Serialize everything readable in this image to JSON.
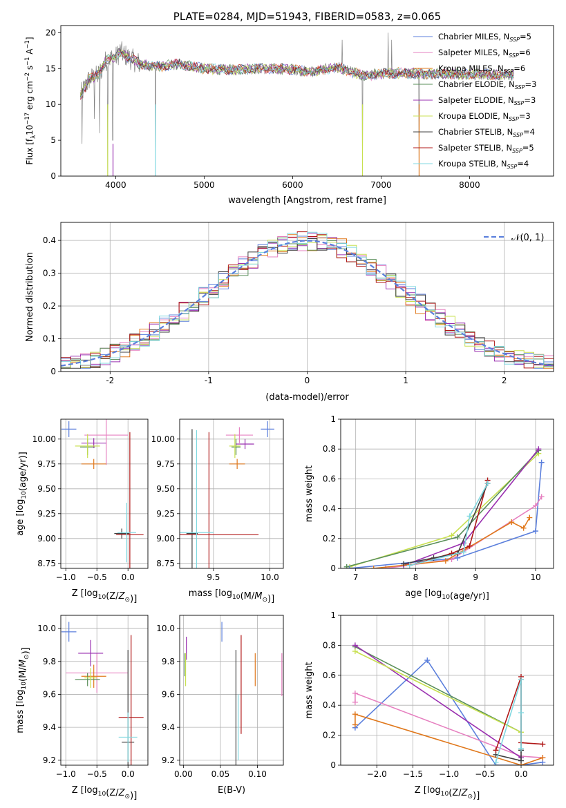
{
  "colors": {
    "data": "#808080",
    "ChabMIL": "#5b7fdc",
    "SalpMIL": "#e680c0",
    "KrouMIL": "#e0781c",
    "ChabELO": "#5a8f5a",
    "SalpELO": "#9a30b0",
    "KrouELO": "#c8e050",
    "ChabSTE": "#404040",
    "SalpSTE": "#b01818",
    "KrouSTE": "#80d8e0",
    "gauss": "#5b7fdc"
  },
  "chart_data": [
    {
      "id": "spectrum",
      "type": "line",
      "title": "PLATE=0284, MJD=51943, FIBERID=0583, z=0.065",
      "xlabel": "wavelength [Angstrom, rest frame]",
      "ylabel": "Flux [f_λ 10^-17 erg cm^-2 s^-1 A^-1]",
      "xlim": [
        3380,
        8950
      ],
      "ylim": [
        0,
        21
      ],
      "xticks": [
        4000,
        5000,
        6000,
        7000,
        8000
      ],
      "yticks": [
        0,
        5,
        10,
        15,
        20
      ],
      "grid": false,
      "legend_position": "top-right",
      "anchors": [
        [
          3600,
          11.2
        ],
        [
          3700,
          13.5
        ],
        [
          3800,
          14.0
        ],
        [
          3900,
          16.3
        ],
        [
          4000,
          16.5
        ],
        [
          4050,
          17.4
        ],
        [
          4150,
          16.5
        ],
        [
          4300,
          15.5
        ],
        [
          4500,
          15.3
        ],
        [
          4700,
          15.6
        ],
        [
          5000,
          15.0
        ],
        [
          5300,
          14.8
        ],
        [
          5600,
          15.0
        ],
        [
          6000,
          14.9
        ],
        [
          6200,
          14.5
        ],
        [
          6500,
          15.2
        ],
        [
          6800,
          14.0
        ],
        [
          7100,
          14.4
        ],
        [
          7500,
          14.3
        ],
        [
          8000,
          14.2
        ],
        [
          8500,
          14.1
        ]
      ],
      "spikes": [
        [
          3620,
          4.5
        ],
        [
          3760,
          8.0
        ],
        [
          3820,
          6.0
        ],
        [
          3910,
          0
        ],
        [
          3968,
          5.0
        ],
        [
          4450,
          0
        ],
        [
          6560,
          19.0
        ],
        [
          6790,
          0
        ],
        [
          7430,
          0
        ],
        [
          7080,
          20.0
        ],
        [
          7120,
          19.0
        ]
      ],
      "series": [
        {
          "key": "ChabMIL",
          "label": "Chabrier MILES, N",
          "sub": "SSP",
          "val": "=5"
        },
        {
          "key": "SalpMIL",
          "label": "Salpeter MILES, N",
          "sub": "SSP",
          "val": "=6"
        },
        {
          "key": "KrouMIL",
          "label": "Kroupa MILES, N",
          "sub": "SSP",
          "val": "=6"
        },
        {
          "key": "ChabELO",
          "label": "Chabrier ELODIE, N",
          "sub": "SSP",
          "val": "=3"
        },
        {
          "key": "SalpELO",
          "label": "Salpeter ELODIE, N",
          "sub": "SSP",
          "val": "=3"
        },
        {
          "key": "KrouELO",
          "label": "Kroupa ELODIE, N",
          "sub": "SSP",
          "val": "=3"
        },
        {
          "key": "ChabSTE",
          "label": "Chabrier STELIB, N",
          "sub": "SSP",
          "val": "=4"
        },
        {
          "key": "SalpSTE",
          "label": "Salpeter STELIB, N",
          "sub": "SSP",
          "val": "=5"
        },
        {
          "key": "KrouSTE",
          "label": "Kroupa STELIB, N",
          "sub": "SSP",
          "val": "=4"
        }
      ]
    },
    {
      "id": "residuals",
      "type": "line",
      "xlabel": "(data-model)/error",
      "ylabel": "Normed distribution",
      "xlim": [
        -2.5,
        2.5
      ],
      "ylim": [
        0,
        0.455
      ],
      "xticks": [
        -2,
        -1,
        0,
        1,
        2
      ],
      "yticks": [
        0.0,
        0.1,
        0.2,
        0.3,
        0.4
      ],
      "grid": true,
      "legend_position": "top-right",
      "legend_label": "𝒩(0, 1)",
      "bin_width": 0.1,
      "n_bins": 50
    },
    {
      "id": "age_vs_Z",
      "type": "scatter",
      "xlabel": "Z [log10(Z/Z⊙)]",
      "ylabel": "age  [log10(age/yr)]",
      "xlim": [
        -1.08,
        0.32
      ],
      "ylim": [
        8.7,
        10.2
      ],
      "xticks": [
        -1.0,
        -0.5,
        0.0
      ],
      "xticklabels": [
        "−1.0",
        "−0.5",
        "0.0"
      ],
      "yticks": [
        8.75,
        9.0,
        9.25,
        9.5,
        9.75,
        10.0
      ],
      "yticklabels": [
        "8.75",
        "9.00",
        "9.25",
        "9.50",
        "9.75",
        "10.00"
      ],
      "grid": true,
      "points": [
        {
          "key": "ChabMIL",
          "x": -0.95,
          "y": 10.1,
          "xerr": 0.12,
          "yerr": 0.08
        },
        {
          "key": "SalpMIL",
          "x": -0.35,
          "y": 10.04,
          "xerr": 0.35,
          "yerr": 0.3
        },
        {
          "key": "KrouMIL",
          "x": -0.55,
          "y": 9.75,
          "xerr": 0.2,
          "yerr": 0.05
        },
        {
          "key": "ChabELO",
          "x": -0.65,
          "y": 9.92,
          "xerr": 0.12,
          "yerr": 0.08
        },
        {
          "key": "SalpELO",
          "x": -0.55,
          "y": 9.96,
          "xerr": 0.2,
          "yerr": 0.05
        },
        {
          "key": "KrouELO",
          "x": -0.65,
          "y": 9.93,
          "xerr": 0.2,
          "yerr": 0.12
        },
        {
          "key": "ChabSTE",
          "x": -0.1,
          "y": 9.05,
          "xerr": 0.12,
          "yerr": 0.05
        },
        {
          "key": "SalpSTE",
          "x": 0.03,
          "y": 9.04,
          "xerr": 0.22,
          "yerr": 1.03
        },
        {
          "key": "KrouSTE",
          "x": -0.02,
          "y": 9.06,
          "xerr": 0.15,
          "yerr": 0.3
        }
      ]
    },
    {
      "id": "age_vs_mass",
      "type": "scatter",
      "xlabel": "mass [log10(M/M⊙)]",
      "xlim": [
        9.2,
        10.12
      ],
      "ylim": [
        8.7,
        10.2
      ],
      "xticks": [
        9.5,
        10.0
      ],
      "xticklabels": [
        "9.5",
        "10.0"
      ],
      "yticks": [
        8.75,
        9.0,
        9.25,
        9.5,
        9.75,
        10.0
      ],
      "yticklabels": [
        "8.75",
        "9.00",
        "9.25",
        "9.50",
        "9.75",
        "10.00"
      ],
      "grid": true,
      "points": [
        {
          "key": "ChabMIL",
          "x": 9.98,
          "y": 10.1,
          "xerr": 0.06,
          "yerr": 0.08
        },
        {
          "key": "SalpMIL",
          "x": 9.73,
          "y": 10.04,
          "xerr": 0.12,
          "yerr": 0.08
        },
        {
          "key": "KrouMIL",
          "x": 9.71,
          "y": 9.75,
          "xerr": 0.07,
          "yerr": 0.05
        },
        {
          "key": "ChabELO",
          "x": 9.7,
          "y": 9.92,
          "xerr": 0.04,
          "yerr": 0.08
        },
        {
          "key": "SalpELO",
          "x": 9.78,
          "y": 9.95,
          "xerr": 0.08,
          "yerr": 0.05
        },
        {
          "key": "KrouELO",
          "x": 9.69,
          "y": 9.93,
          "xerr": 0.05,
          "yerr": 0.12
        },
        {
          "key": "ChabSTE",
          "x": 9.31,
          "y": 9.05,
          "xerr": 0.05,
          "yerr": 1.05
        },
        {
          "key": "SalpSTE",
          "x": 9.46,
          "y": 9.04,
          "xerr": 0.44,
          "yerr": 1.03
        },
        {
          "key": "KrouSTE",
          "x": 9.35,
          "y": 9.06,
          "xerr": 0.15,
          "yerr": 1.03
        }
      ]
    },
    {
      "id": "mass_weight_vs_age",
      "type": "line",
      "xlabel": "age  [log10(age/yr)]",
      "ylabel": "mass weight",
      "xlim": [
        6.75,
        10.3
      ],
      "ylim": [
        0,
        1.0
      ],
      "xticks": [
        7,
        8,
        9,
        10
      ],
      "yticks": [
        0.0,
        0.2,
        0.4,
        0.6,
        0.8,
        1.0
      ],
      "grid": true,
      "series": [
        {
          "key": "KrouELO",
          "x": [
            6.9,
            8.6,
            10.05
          ],
          "y": [
            0.01,
            0.22,
            0.77
          ]
        },
        {
          "key": "ChabELO",
          "x": [
            6.85,
            8.7,
            10.05
          ],
          "y": [
            0.01,
            0.21,
            0.79
          ]
        },
        {
          "key": "SalpELO",
          "x": [
            7.8,
            8.8,
            10.05
          ],
          "y": [
            0.02,
            0.17,
            0.8
          ]
        },
        {
          "key": "ChabMIL",
          "x": [
            6.9,
            8.7,
            10.0,
            10.1
          ],
          "y": [
            0.0,
            0.07,
            0.25,
            0.71
          ]
        },
        {
          "key": "SalpMIL",
          "x": [
            7.5,
            8.6,
            10.0,
            10.1
          ],
          "y": [
            0.0,
            0.06,
            0.42,
            0.48
          ]
        },
        {
          "key": "KrouMIL",
          "x": [
            7.3,
            8.5,
            9.6,
            9.8,
            9.9
          ],
          "y": [
            0.0,
            0.05,
            0.31,
            0.27,
            0.34
          ]
        },
        {
          "key": "SalpSTE",
          "x": [
            7.9,
            8.6,
            8.9,
            9.2
          ],
          "y": [
            0.02,
            0.1,
            0.15,
            0.59
          ]
        },
        {
          "key": "ChabSTE",
          "x": [
            7.8,
            8.3,
            8.7,
            9.2
          ],
          "y": [
            0.03,
            0.07,
            0.1,
            0.57
          ]
        },
        {
          "key": "KrouSTE",
          "x": [
            7.9,
            8.8,
            8.9,
            9.2
          ],
          "y": [
            0.02,
            0.11,
            0.35,
            0.57
          ]
        }
      ]
    },
    {
      "id": "mass_vs_Z",
      "type": "scatter",
      "xlabel": "Z [log10(Z/Z⊙)]",
      "ylabel": "mass [log10(M/M⊙)]",
      "xlim": [
        -1.08,
        0.32
      ],
      "ylim": [
        9.17,
        10.08
      ],
      "xticks": [
        -1.0,
        -0.5,
        0.0
      ],
      "xticklabels": [
        "−1.0",
        "−0.5",
        "0.0"
      ],
      "yticks": [
        9.2,
        9.4,
        9.6,
        9.8,
        10.0
      ],
      "yticklabels": [
        "9.2",
        "9.4",
        "9.6",
        "9.8",
        "10.0"
      ],
      "grid": true,
      "points": [
        {
          "key": "ChabMIL",
          "x": -0.95,
          "y": 9.98,
          "xerr": 0.12,
          "yerr": 0.06
        },
        {
          "key": "SalpMIL",
          "x": -0.5,
          "y": 9.73,
          "xerr": 0.5,
          "yerr": 0.12
        },
        {
          "key": "KrouMIL",
          "x": -0.55,
          "y": 9.71,
          "xerr": 0.2,
          "yerr": 0.07
        },
        {
          "key": "ChabELO",
          "x": -0.65,
          "y": 9.69,
          "xerr": 0.2,
          "yerr": 0.04
        },
        {
          "key": "SalpELO",
          "x": -0.6,
          "y": 9.85,
          "xerr": 0.2,
          "yerr": 0.08
        },
        {
          "key": "KrouELO",
          "x": -0.6,
          "y": 9.7,
          "xerr": 0.1,
          "yerr": 0.06
        },
        {
          "key": "ChabSTE",
          "x": 0.0,
          "y": 9.31,
          "xerr": 0.1,
          "yerr": 0.56
        },
        {
          "key": "SalpSTE",
          "x": 0.05,
          "y": 9.46,
          "xerr": 0.2,
          "yerr": 0.5
        },
        {
          "key": "KrouSTE",
          "x": 0.0,
          "y": 9.34,
          "xerr": 0.15,
          "yerr": 0.15
        }
      ]
    },
    {
      "id": "mass_vs_ebv",
      "type": "scatter",
      "xlabel": "E(B-V)",
      "xlim": [
        -0.005,
        0.135
      ],
      "ylim": [
        9.17,
        10.08
      ],
      "xticks": [
        0.0,
        0.05,
        0.1
      ],
      "xticklabels": [
        "0.00",
        "0.05",
        "0.10"
      ],
      "yticks": [
        9.2,
        9.4,
        9.6,
        9.8,
        10.0
      ],
      "yticklabels": [
        "9.2",
        "9.4",
        "9.6",
        "9.8",
        "10.0"
      ],
      "grid": true,
      "points": [
        {
          "key": "ChabMIL",
          "x": 0.052,
          "y": 9.98,
          "xerr": 0,
          "yerr": 0.06
        },
        {
          "key": "SalpMIL",
          "x": 0.133,
          "y": 9.72,
          "xerr": 0,
          "yerr": 0.13
        },
        {
          "key": "KrouMIL",
          "x": 0.097,
          "y": 9.75,
          "xerr": 0,
          "yerr": 0.1
        },
        {
          "key": "ChabELO",
          "x": 0.002,
          "y": 9.78,
          "xerr": 0,
          "yerr": 0.07
        },
        {
          "key": "SalpELO",
          "x": 0.004,
          "y": 9.88,
          "xerr": 0,
          "yerr": 0.07
        },
        {
          "key": "KrouELO",
          "x": 0.003,
          "y": 9.75,
          "xerr": 0,
          "yerr": 0.1
        },
        {
          "key": "ChabSTE",
          "x": 0.071,
          "y": 9.5,
          "xerr": 0,
          "yerr": 0.37
        },
        {
          "key": "SalpSTE",
          "x": 0.078,
          "y": 9.66,
          "xerr": 0,
          "yerr": 0.3
        },
        {
          "key": "KrouSTE",
          "x": 0.074,
          "y": 9.4,
          "xerr": 0,
          "yerr": 0.2
        }
      ]
    },
    {
      "id": "mass_weight_vs_Z",
      "type": "line",
      "xlabel": "Z [log10(Z/Z⊙)]",
      "ylabel": "mass weight",
      "xlim": [
        -2.5,
        0.45
      ],
      "ylim": [
        0,
        1.0
      ],
      "xticks": [
        -2.0,
        -1.5,
        -1.0,
        -0.5,
        0.0
      ],
      "xticklabels": [
        "−2.0",
        "−1.5",
        "−1.0",
        "−0.5",
        "0.0"
      ],
      "yticks": [
        0.0,
        0.2,
        0.4,
        0.6,
        0.8,
        1.0
      ],
      "grid": true,
      "series": [
        {
          "key": "ChabMIL",
          "x": [
            -2.3,
            -1.3,
            -0.35,
            0.0,
            0.3
          ],
          "y": [
            0.25,
            0.7,
            0.0,
            0.0,
            0.02
          ]
        },
        {
          "key": "SalpMIL",
          "x": [
            -2.3,
            -2.3,
            0.0,
            0.3
          ],
          "y": [
            0.42,
            0.48,
            0.06,
            0.05
          ]
        },
        {
          "key": "KrouMIL",
          "x": [
            -2.3,
            -2.3,
            0.0,
            0.3
          ],
          "y": [
            0.27,
            0.34,
            0.0,
            0.05
          ]
        },
        {
          "key": "ChabELO",
          "x": [
            -2.3,
            0.0
          ],
          "y": [
            0.79,
            0.22
          ]
        },
        {
          "key": "SalpELO",
          "x": [
            -2.3,
            0.0
          ],
          "y": [
            0.8,
            0.05
          ]
        },
        {
          "key": "KrouELO",
          "x": [
            -2.3,
            0.0
          ],
          "y": [
            0.76,
            0.22
          ]
        },
        {
          "key": "ChabSTE",
          "x": [
            -0.35,
            0.0,
            0.0,
            0.0
          ],
          "y": [
            0.07,
            0.03,
            0.57,
            0.1
          ]
        },
        {
          "key": "SalpSTE",
          "x": [
            -0.35,
            0.0,
            0.0,
            0.3
          ],
          "y": [
            0.1,
            0.59,
            0.15,
            0.14
          ]
        },
        {
          "key": "KrouSTE",
          "x": [
            -0.35,
            0.0,
            0.0,
            0.0
          ],
          "y": [
            0.02,
            0.57,
            0.35,
            0.11
          ]
        }
      ]
    }
  ]
}
